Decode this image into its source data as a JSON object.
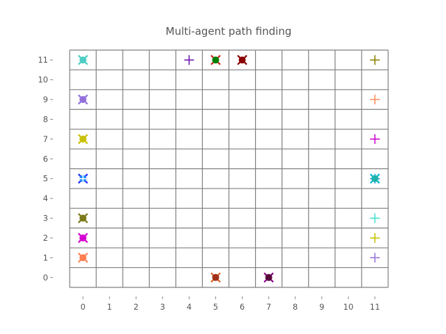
{
  "chart_data": {
    "type": "scatter",
    "title": "Multi-agent path finding",
    "xlabel": "",
    "ylabel": "",
    "xlim": [
      0,
      11
    ],
    "ylim": [
      0,
      11
    ],
    "x_ticks": [
      "0",
      "1",
      "2",
      "3",
      "4",
      "5",
      "6",
      "7",
      "8",
      "9",
      "10",
      "11"
    ],
    "y_ticks": [
      "0",
      "1",
      "2",
      "3",
      "4",
      "5",
      "6",
      "7",
      "8",
      "9",
      "10",
      "11"
    ],
    "grid": true,
    "agents": [
      {
        "x": 0,
        "y": 11,
        "marker": "x",
        "color": "#4ecdc4"
      },
      {
        "x": 0,
        "y": 11,
        "marker": "dot",
        "color": "#4ecdc4"
      },
      {
        "x": 0,
        "y": 9,
        "marker": "x",
        "color": "#9370db"
      },
      {
        "x": 0,
        "y": 9,
        "marker": "dot",
        "color": "#9370db"
      },
      {
        "x": 0,
        "y": 7,
        "marker": "x",
        "color": "#c8c000"
      },
      {
        "x": 0,
        "y": 7,
        "marker": "dot",
        "color": "#c8c000"
      },
      {
        "x": 0,
        "y": 5,
        "marker": "x",
        "color": "#1e2bff"
      },
      {
        "x": 0,
        "y": 5,
        "marker": "dot",
        "color": "#1e90ff"
      },
      {
        "x": 0,
        "y": 5,
        "marker": "plus",
        "color": "#ffffff"
      },
      {
        "x": 0,
        "y": 3,
        "marker": "x",
        "color": "#7a7a1a"
      },
      {
        "x": 0,
        "y": 3,
        "marker": "dot",
        "color": "#7a7a1a"
      },
      {
        "x": 0,
        "y": 2,
        "marker": "x",
        "color": "#d400d4"
      },
      {
        "x": 0,
        "y": 2,
        "marker": "dot",
        "color": "#d400d4"
      },
      {
        "x": 0,
        "y": 1,
        "marker": "x",
        "color": "#ff7f50"
      },
      {
        "x": 0,
        "y": 1,
        "marker": "dot",
        "color": "#ff7f50"
      },
      {
        "x": 4,
        "y": 11,
        "marker": "plus",
        "color": "#6a0dad"
      },
      {
        "x": 5,
        "y": 11,
        "marker": "x",
        "color": "#cc2222"
      },
      {
        "x": 5,
        "y": 11,
        "marker": "dot",
        "color": "#008000"
      },
      {
        "x": 6,
        "y": 11,
        "marker": "x",
        "color": "#8b0000"
      },
      {
        "x": 6,
        "y": 11,
        "marker": "dot",
        "color": "#8b0000"
      },
      {
        "x": 11,
        "y": 11,
        "marker": "plus",
        "color": "#8b7d00"
      },
      {
        "x": 11,
        "y": 9,
        "marker": "plus",
        "color": "#ff8c5a"
      },
      {
        "x": 11,
        "y": 7,
        "marker": "plus",
        "color": "#cc00cc"
      },
      {
        "x": 11,
        "y": 5,
        "marker": "x",
        "color": "#00bcd4"
      },
      {
        "x": 11,
        "y": 5,
        "marker": "plus",
        "color": "#1e90ff"
      },
      {
        "x": 11,
        "y": 5,
        "marker": "dot",
        "color": "#20b2aa"
      },
      {
        "x": 11,
        "y": 3,
        "marker": "plus",
        "color": "#40e0d0"
      },
      {
        "x": 11,
        "y": 2,
        "marker": "plus",
        "color": "#c8c000"
      },
      {
        "x": 11,
        "y": 1,
        "marker": "plus",
        "color": "#9370db"
      },
      {
        "x": 5,
        "y": 0,
        "marker": "x",
        "color": "#e06020"
      },
      {
        "x": 5,
        "y": 0,
        "marker": "dot",
        "color": "#a0301a"
      },
      {
        "x": 7,
        "y": 0,
        "marker": "x",
        "color": "#8b008b"
      },
      {
        "x": 7,
        "y": 0,
        "marker": "dot",
        "color": "#5a0a3a"
      }
    ]
  }
}
